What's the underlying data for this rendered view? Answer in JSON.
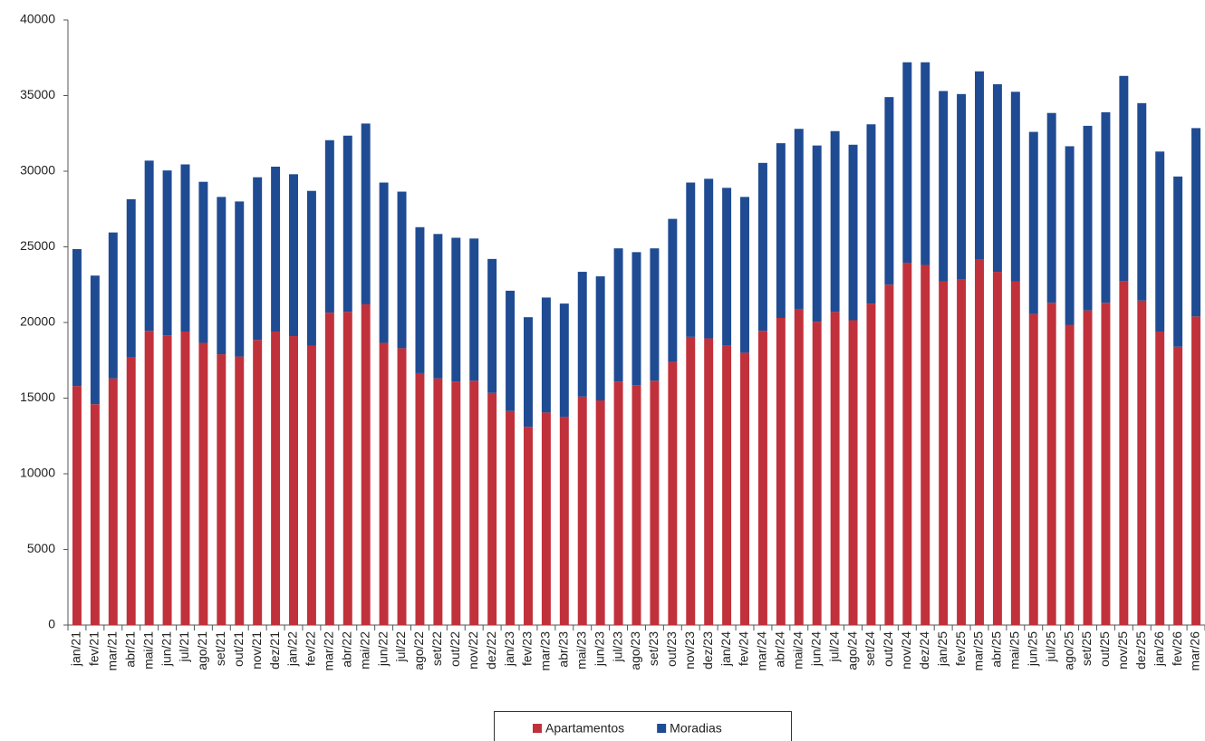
{
  "chart_data": {
    "type": "stacked-bar",
    "categories": [
      "jan/21",
      "fev/21",
      "mar/21",
      "abr/21",
      "mai/21",
      "jun/21",
      "jul/21",
      "ago/21",
      "set/21",
      "out/21",
      "nov/21",
      "dez/21",
      "jan/22",
      "fev/22",
      "mar/22",
      "abr/22",
      "mai/22",
      "jun/22",
      "jul/22",
      "ago/22",
      "set/22",
      "out/22",
      "nov/22",
      "dez/22",
      "jan/23",
      "fev/23",
      "mar/23",
      "abr/23",
      "mai/23",
      "jun/23",
      "jul/23",
      "ago/23",
      "set/23",
      "out/23",
      "nov/23",
      "dez/23",
      "jan/24",
      "fev/24",
      "mar/24",
      "abr/24",
      "mai/24",
      "jun/24",
      "jul/24",
      "ago/24",
      "set/24",
      "out/24",
      "nov/24",
      "dez/24",
      "jan/25",
      "fev/25",
      "mar/25",
      "abr/25",
      "mai/25",
      "jun/25",
      "jul/25",
      "ago/25",
      "set/25",
      "out/25",
      "nov/25",
      "dez/25",
      "jan/26",
      "fev/26",
      "mar/26"
    ],
    "series": [
      {
        "name": "Apartamentos",
        "color": "#c1313b",
        "values": [
          15800,
          14600,
          16300,
          17700,
          19450,
          19150,
          19400,
          18650,
          17900,
          17750,
          18850,
          19400,
          19100,
          18450,
          20650,
          20700,
          21200,
          18650,
          18300,
          16650,
          16300,
          16100,
          16150,
          15350,
          14150,
          13100,
          14050,
          13750,
          15100,
          14850,
          16100,
          15850,
          16150,
          17400,
          19050,
          18950,
          18500,
          18000,
          19450,
          20300,
          20900,
          20050,
          20700,
          20150,
          21250,
          22500,
          23950,
          23800,
          22700,
          22850,
          24150,
          23350,
          22700,
          20550,
          21300,
          19850,
          20800,
          21300,
          22750,
          21450,
          19400,
          18400,
          20400
        ]
      },
      {
        "name": "Moradias",
        "color": "#1f4b93",
        "values": [
          9050,
          8500,
          9650,
          10450,
          11250,
          10900,
          11050,
          10650,
          10400,
          10250,
          10750,
          10900,
          10700,
          10250,
          11400,
          11650,
          11950,
          10600,
          10350,
          9650,
          9550,
          9500,
          9400,
          8850,
          7950,
          7250,
          7600,
          7500,
          8250,
          8200,
          8800,
          8800,
          8750,
          9450,
          10200,
          10550,
          10400,
          10300,
          11100,
          11550,
          11900,
          11650,
          11950,
          11600,
          11850,
          12400,
          13250,
          13400,
          12600,
          12250,
          12450,
          12400,
          12550,
          12050,
          12550,
          11800,
          12200,
          12600,
          13550,
          13050,
          11900,
          11250,
          12450
        ]
      }
    ],
    "ylim": [
      0,
      40000
    ],
    "yticks": [
      0,
      5000,
      10000,
      15000,
      20000,
      25000,
      30000,
      35000,
      40000
    ],
    "legend": "bottom"
  }
}
